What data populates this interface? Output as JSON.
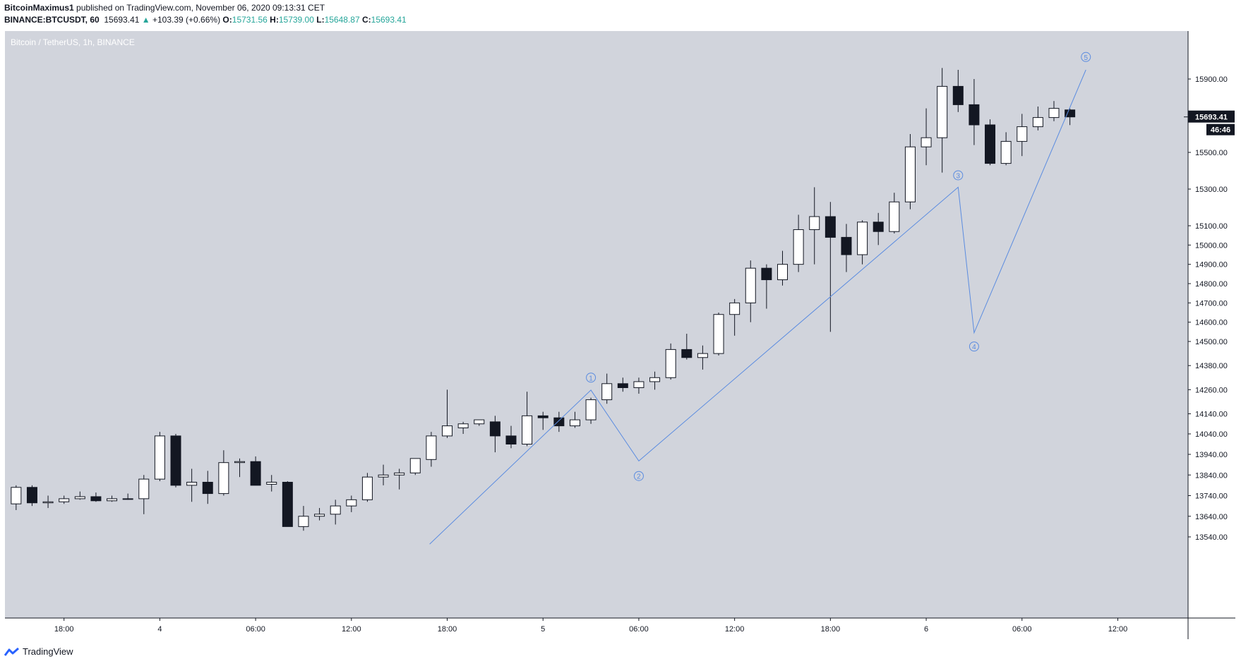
{
  "header": {
    "author": "BitcoinMaximus1",
    "published_text": "published on TradingView.com, November 06, 2020 09:13:31 CET",
    "symbol": "BINANCE:BTCUSDT, 60",
    "last": "15693.41",
    "change_arrow": "▲",
    "change": "+103.39 (+0.66%)",
    "o_label": "O:",
    "o_value": "15731.56",
    "h_label": "H:",
    "h_value": "15739.00",
    "l_label": "L:",
    "l_value": "15648.87",
    "c_label": "C:",
    "c_value": "15693.41"
  },
  "footer": {
    "brand": "TradingView",
    "logo_icon": "tradingview-logo-icon"
  },
  "colors": {
    "background": "#d1d4dc",
    "up_body": "#ffffff",
    "down_body": "#131722",
    "wick": "#131722",
    "wave_line": "#5b8ce0",
    "price_badge": "#131722"
  },
  "chart_data": {
    "type": "candlestick",
    "title": "Bitcoin / TetherUS, 1h, BINANCE",
    "currency": "USDT",
    "ylim": [
      13470,
      16080
    ],
    "y_ticks": [
      13540,
      13640,
      13740,
      13840,
      13940,
      14040,
      14140,
      14260,
      14380,
      14500,
      14600,
      14700,
      14800,
      14900,
      15000,
      15100,
      15300,
      15500,
      15700,
      15900
    ],
    "y_tick_labels": [
      "13540.00",
      "13640.00",
      "13740.00",
      "13840.00",
      "13940.00",
      "14040.00",
      "14140.00",
      "14260.00",
      "14380.00",
      "14500.00",
      "14600.00",
      "14700.00",
      "14800.00",
      "14900.00",
      "15000.00",
      "15100.00",
      "15300.00",
      "15500.00",
      "15700.00",
      "15900.00"
    ],
    "x_range_hours": [
      -18.7,
      55.4
    ],
    "x_ticks": [
      {
        "hour": -15,
        "label": "18:00"
      },
      {
        "hour": -9,
        "label": "4"
      },
      {
        "hour": -3,
        "label": "06:00"
      },
      {
        "hour": 3,
        "label": "12:00"
      },
      {
        "hour": 9,
        "label": "18:00"
      },
      {
        "hour": 15,
        "label": "5"
      },
      {
        "hour": 21,
        "label": "06:00"
      },
      {
        "hour": 27,
        "label": "12:00"
      },
      {
        "hour": 33,
        "label": "18:00"
      },
      {
        "hour": 39,
        "label": "6"
      },
      {
        "hour": 45,
        "label": "06:00"
      },
      {
        "hour": 51,
        "label": "12:00"
      }
    ],
    "candles": [
      {
        "o": 13700,
        "h": 13790,
        "l": 13670,
        "c": 13780
      },
      {
        "o": 13780,
        "h": 13790,
        "l": 13690,
        "c": 13705
      },
      {
        "o": 13705,
        "h": 13740,
        "l": 13680,
        "c": 13710
      },
      {
        "o": 13710,
        "h": 13740,
        "l": 13700,
        "c": 13725
      },
      {
        "o": 13725,
        "h": 13760,
        "l": 13720,
        "c": 13735
      },
      {
        "o": 13735,
        "h": 13755,
        "l": 13710,
        "c": 13715
      },
      {
        "o": 13715,
        "h": 13740,
        "l": 13710,
        "c": 13725
      },
      {
        "o": 13725,
        "h": 13750,
        "l": 13720,
        "c": 13725
      },
      {
        "o": 13725,
        "h": 13840,
        "l": 13650,
        "c": 13820
      },
      {
        "o": 13820,
        "h": 14050,
        "l": 13810,
        "c": 14030
      },
      {
        "o": 14030,
        "h": 14040,
        "l": 13780,
        "c": 13790
      },
      {
        "o": 13790,
        "h": 13870,
        "l": 13710,
        "c": 13805
      },
      {
        "o": 13805,
        "h": 13860,
        "l": 13700,
        "c": 13750
      },
      {
        "o": 13750,
        "h": 13960,
        "l": 13740,
        "c": 13900
      },
      {
        "o": 13900,
        "h": 13920,
        "l": 13830,
        "c": 13905
      },
      {
        "o": 13905,
        "h": 13930,
        "l": 13790,
        "c": 13790
      },
      {
        "o": 13795,
        "h": 13840,
        "l": 13760,
        "c": 13805
      },
      {
        "o": 13805,
        "h": 13810,
        "l": 13590,
        "c": 13590
      },
      {
        "o": 13590,
        "h": 13690,
        "l": 13570,
        "c": 13640
      },
      {
        "o": 13640,
        "h": 13680,
        "l": 13620,
        "c": 13650
      },
      {
        "o": 13650,
        "h": 13720,
        "l": 13600,
        "c": 13690
      },
      {
        "o": 13690,
        "h": 13740,
        "l": 13660,
        "c": 13720
      },
      {
        "o": 13720,
        "h": 13850,
        "l": 13710,
        "c": 13830
      },
      {
        "o": 13830,
        "h": 13890,
        "l": 13790,
        "c": 13840
      },
      {
        "o": 13840,
        "h": 13870,
        "l": 13770,
        "c": 13850
      },
      {
        "o": 13850,
        "h": 13920,
        "l": 13840,
        "c": 13920
      },
      {
        "o": 13915,
        "h": 14050,
        "l": 13880,
        "c": 14030
      },
      {
        "o": 14030,
        "h": 14260,
        "l": 14020,
        "c": 14080
      },
      {
        "o": 14070,
        "h": 14100,
        "l": 14040,
        "c": 14090
      },
      {
        "o": 14090,
        "h": 14110,
        "l": 14080,
        "c": 14110
      },
      {
        "o": 14100,
        "h": 14130,
        "l": 13950,
        "c": 14030
      },
      {
        "o": 14030,
        "h": 14080,
        "l": 13970,
        "c": 13990
      },
      {
        "o": 13990,
        "h": 14250,
        "l": 13980,
        "c": 14130
      },
      {
        "o": 14130,
        "h": 14150,
        "l": 14060,
        "c": 14120
      },
      {
        "o": 14120,
        "h": 14150,
        "l": 14050,
        "c": 14080
      },
      {
        "o": 14080,
        "h": 14150,
        "l": 14070,
        "c": 14110
      },
      {
        "o": 14110,
        "h": 14220,
        "l": 14090,
        "c": 14210
      },
      {
        "o": 14210,
        "h": 14340,
        "l": 14190,
        "c": 14290
      },
      {
        "o": 14290,
        "h": 14320,
        "l": 14250,
        "c": 14270
      },
      {
        "o": 14270,
        "h": 14320,
        "l": 14240,
        "c": 14300
      },
      {
        "o": 14300,
        "h": 14350,
        "l": 14260,
        "c": 14320
      },
      {
        "o": 14320,
        "h": 14490,
        "l": 14310,
        "c": 14460
      },
      {
        "o": 14460,
        "h": 14540,
        "l": 14410,
        "c": 14420
      },
      {
        "o": 14420,
        "h": 14480,
        "l": 14360,
        "c": 14440
      },
      {
        "o": 14440,
        "h": 14650,
        "l": 14430,
        "c": 14640
      },
      {
        "o": 14640,
        "h": 14720,
        "l": 14530,
        "c": 14700
      },
      {
        "o": 14700,
        "h": 14920,
        "l": 14600,
        "c": 14880
      },
      {
        "o": 14880,
        "h": 14900,
        "l": 14670,
        "c": 14820
      },
      {
        "o": 14820,
        "h": 14970,
        "l": 14790,
        "c": 14900
      },
      {
        "o": 14900,
        "h": 15160,
        "l": 14860,
        "c": 15080
      },
      {
        "o": 15080,
        "h": 15310,
        "l": 14900,
        "c": 15150
      },
      {
        "o": 15150,
        "h": 15230,
        "l": 14550,
        "c": 15040
      },
      {
        "o": 15040,
        "h": 15110,
        "l": 14860,
        "c": 14950
      },
      {
        "o": 14950,
        "h": 15130,
        "l": 14900,
        "c": 15120
      },
      {
        "o": 15120,
        "h": 15170,
        "l": 15000,
        "c": 15070
      },
      {
        "o": 15070,
        "h": 15280,
        "l": 15060,
        "c": 15230
      },
      {
        "o": 15230,
        "h": 15600,
        "l": 15190,
        "c": 15530
      },
      {
        "o": 15530,
        "h": 15740,
        "l": 15430,
        "c": 15580
      },
      {
        "o": 15580,
        "h": 15960,
        "l": 15390,
        "c": 15860
      },
      {
        "o": 15860,
        "h": 15950,
        "l": 15720,
        "c": 15760
      },
      {
        "o": 15760,
        "h": 15900,
        "l": 15540,
        "c": 15650
      },
      {
        "o": 15650,
        "h": 15680,
        "l": 15430,
        "c": 15440
      },
      {
        "o": 15440,
        "h": 15610,
        "l": 15430,
        "c": 15560
      },
      {
        "o": 15560,
        "h": 15710,
        "l": 15480,
        "c": 15640
      },
      {
        "o": 15640,
        "h": 15750,
        "l": 15620,
        "c": 15690
      },
      {
        "o": 15690,
        "h": 15780,
        "l": 15670,
        "c": 15740
      },
      {
        "o": 15731.56,
        "h": 15739.0,
        "l": 15648.87,
        "c": 15693.41
      }
    ],
    "wave": [
      {
        "hour": 7.9,
        "price": 13505
      },
      {
        "hour": 18,
        "price": 14258
      },
      {
        "hour": 21,
        "price": 13908
      },
      {
        "hour": 41,
        "price": 15310
      },
      {
        "hour": 42,
        "price": 14545
      },
      {
        "hour": 49,
        "price": 15950
      }
    ],
    "wave_labels": [
      {
        "hour": 18,
        "price": 14320,
        "label": "1"
      },
      {
        "hour": 21,
        "price": 13835,
        "label": "2"
      },
      {
        "hour": 41,
        "price": 15375,
        "label": "3"
      },
      {
        "hour": 42,
        "price": 14475,
        "label": "4"
      },
      {
        "hour": 49,
        "price": 16020,
        "label": "5"
      }
    ],
    "last_price_label": "15693.41",
    "countdown_label": "46:46"
  }
}
